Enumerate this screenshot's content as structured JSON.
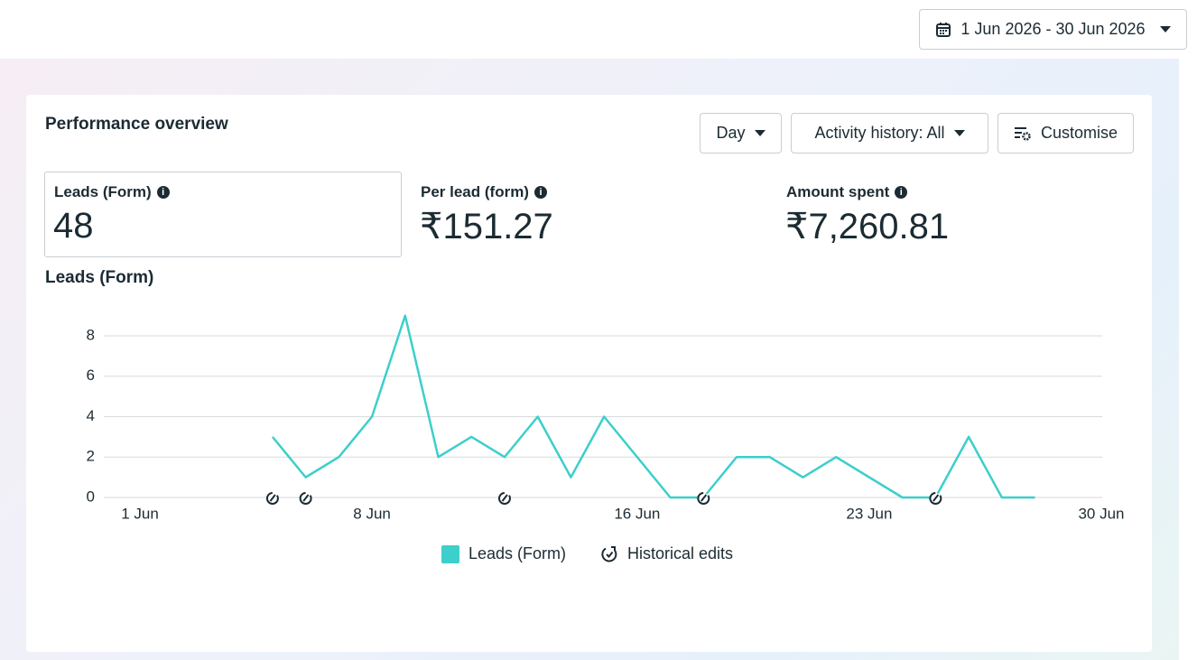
{
  "date_range": "1 Jun 2026 - 30 Jun 2026",
  "panel": {
    "title": "Performance overview",
    "controls": [
      "Day",
      "Activity history: All",
      "Customise"
    ]
  },
  "metrics": [
    {
      "label": "Leads (Form)",
      "value": "48"
    },
    {
      "label": "Per lead (form)",
      "value": "₹151.27"
    },
    {
      "label": "Amount spent",
      "value": "₹7,260.81"
    }
  ],
  "chart_data": {
    "type": "line",
    "title": "Leads (Form)",
    "categories": [
      "1 Jun",
      null,
      null,
      null,
      null,
      null,
      null,
      "8 Jun",
      null,
      null,
      null,
      null,
      null,
      null,
      null,
      "16 Jun",
      null,
      null,
      null,
      null,
      null,
      null,
      "23 Jun",
      null,
      null,
      null,
      null,
      null,
      null,
      "30 Jun"
    ],
    "series": [
      {
        "name": "Leads (Form)",
        "color": "#3ccfcb",
        "values": [
          null,
          null,
          null,
          null,
          3,
          1,
          2,
          4,
          9,
          2,
          3,
          2,
          4,
          1,
          4,
          2,
          0,
          0,
          2,
          2,
          1,
          2,
          1,
          0,
          0,
          3,
          0,
          0,
          null,
          null
        ]
      }
    ],
    "ylim": [
      0,
      9
    ],
    "yticks": [
      0,
      2,
      4,
      6,
      8
    ],
    "grid": true,
    "historical_edits": {
      "name": "Historical edits",
      "at": [
        4,
        5,
        11,
        17,
        24
      ]
    }
  }
}
